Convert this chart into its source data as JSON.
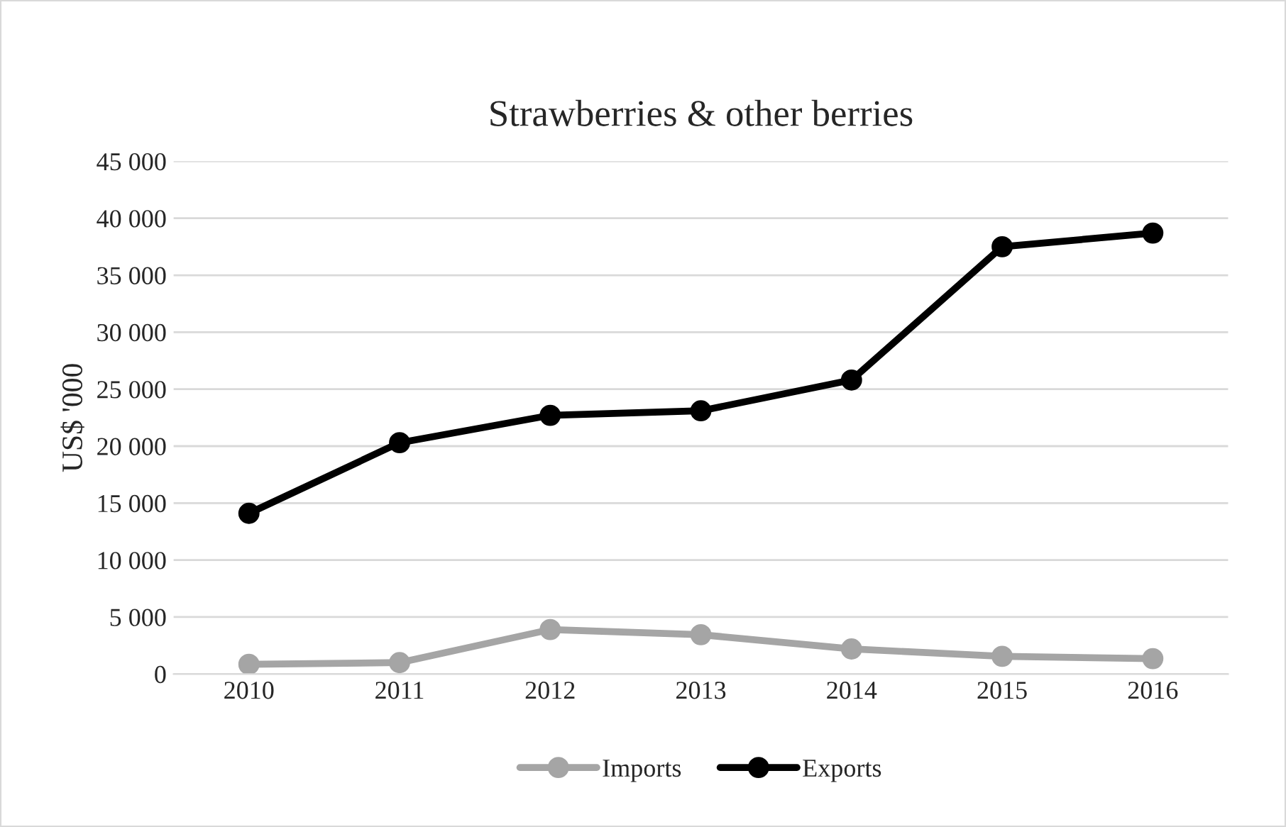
{
  "chart_data": {
    "type": "line",
    "title": "Strawberries & other berries",
    "ylabel": "US$ '000",
    "categories": [
      "2010",
      "2011",
      "2012",
      "2013",
      "2014",
      "2015",
      "2016"
    ],
    "series": [
      {
        "name": "Imports",
        "color": "#a5a5a5",
        "values": [
          850,
          1000,
          3900,
          3450,
          2200,
          1550,
          1350
        ]
      },
      {
        "name": "Exports",
        "color": "#000000",
        "values": [
          14100,
          20300,
          22700,
          23100,
          25800,
          37500,
          38700
        ]
      }
    ],
    "ylim": [
      0,
      45000
    ],
    "yticks": [
      0,
      {
        "value": 5000,
        "label": "5 000"
      },
      {
        "value": 10000,
        "label": "10 000"
      },
      {
        "value": 15000,
        "label": "15 000"
      },
      {
        "value": 20000,
        "label": "20 000"
      },
      {
        "value": 25000,
        "label": "25 000"
      },
      {
        "value": 30000,
        "label": "30 000"
      },
      {
        "value": 35000,
        "label": "35 000"
      },
      {
        "value": 40000,
        "label": "40 000"
      },
      {
        "value": 45000,
        "label": "45 000"
      }
    ],
    "grid": "y",
    "legend": "bottom",
    "marker": "circle",
    "line_style": "solid"
  }
}
